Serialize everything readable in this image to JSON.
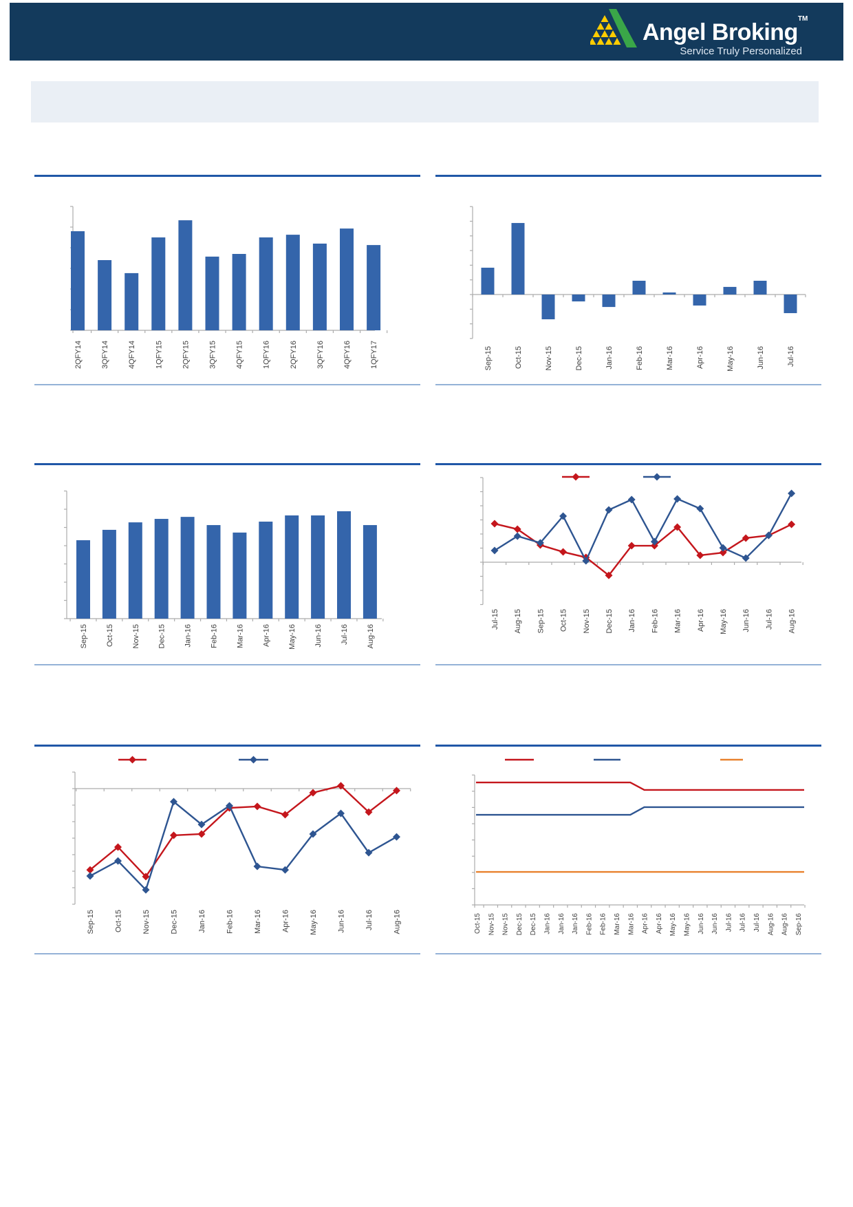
{
  "header": {
    "brand": "Angel Broking",
    "trademark": "TM",
    "tagline": "Service Truly Personalized",
    "bg_color": "#133A5C",
    "logo_green": "#3AA648",
    "logo_yellow": "#FFCC00"
  },
  "banner": {
    "bg_color": "#EAEFF5",
    "text": ""
  },
  "styles": {
    "separator_top_color": "#2057A7",
    "separator_bottom_color": "#94B2D7",
    "axis_color": "#ACACAC",
    "label_color": "#404040"
  },
  "chart_data": [
    {
      "id": "c1",
      "name": "quarterly-bar-chart",
      "type": "bar",
      "title": "",
      "categories": [
        "2QFY14",
        "3QFY14",
        "4QFY14",
        "1QFY15",
        "2QFY15",
        "3QFY15",
        "4QFY15",
        "1QFY16",
        "2QFY16",
        "3QFY16",
        "4QFY16",
        "1QFY17"
      ],
      "values": [
        4.8,
        3.4,
        2.77,
        4.5,
        5.33,
        3.57,
        3.7,
        4.5,
        4.63,
        4.2,
        4.93,
        4.13
      ],
      "color": "#3465AB",
      "xlabel": "",
      "ylabel": "",
      "ylim": [
        0,
        6
      ],
      "grid": false
    },
    {
      "id": "c2",
      "name": "monthly-change-bar-chart",
      "type": "bar",
      "title": "",
      "categories": [
        "Sep-15",
        "Oct-15",
        "Nov-15",
        "Dec-15",
        "Jan-16",
        "Feb-16",
        "Mar-16",
        "Apr-16",
        "May-16",
        "Jun-16",
        "Jul-16"
      ],
      "values": [
        1.83,
        4.88,
        -1.69,
        -0.47,
        -0.85,
        0.94,
        0.14,
        -0.75,
        0.52,
        0.94,
        -1.27
      ],
      "color": "#3465AB",
      "xlabel": "",
      "ylabel": "",
      "ylim": [
        -3,
        6
      ],
      "grid": false
    },
    {
      "id": "c3",
      "name": "monthly-level-bar-chart",
      "type": "bar",
      "title": "",
      "categories": [
        "Sep-15",
        "Oct-15",
        "Nov-15",
        "Dec-15",
        "Jan-16",
        "Feb-16",
        "Mar-16",
        "Apr-16",
        "May-16",
        "Jun-16",
        "Jul-16",
        "Aug-16"
      ],
      "values": [
        4.3,
        4.87,
        5.28,
        5.47,
        5.58,
        5.13,
        4.72,
        5.32,
        5.66,
        5.66,
        5.89,
        5.13
      ],
      "color": "#3465AB",
      "xlabel": "",
      "ylabel": "",
      "ylim": [
        0,
        7
      ],
      "grid": false
    },
    {
      "id": "c4",
      "name": "two-series-growth-line-chart",
      "type": "line",
      "title": "",
      "categories": [
        "Jul-15",
        "Aug-15",
        "Sep-15",
        "Oct-15",
        "Nov-15",
        "Dec-15",
        "Jan-16",
        "Feb-16",
        "Mar-16",
        "Apr-16",
        "May-16",
        "Jun-16",
        "Jul-16",
        "Aug-16"
      ],
      "series": [
        {
          "name": "red-series",
          "color": "#C4161C",
          "marker": "diamond",
          "values": [
            2.73,
            2.34,
            1.22,
            0.73,
            0.34,
            -0.93,
            1.17,
            1.17,
            2.49,
            0.49,
            0.68,
            1.71,
            1.9,
            2.68
          ]
        },
        {
          "name": "blue-series",
          "color": "#2E5591",
          "marker": "diamond",
          "values": [
            0.83,
            1.85,
            1.37,
            3.27,
            0.1,
            3.71,
            4.44,
            1.46,
            4.49,
            3.8,
            1.02,
            0.29,
            1.9,
            4.88
          ]
        }
      ],
      "xlabel": "",
      "ylabel": "",
      "ylim": [
        -3,
        6
      ],
      "legend_position": "top",
      "grid": false
    },
    {
      "id": "c5",
      "name": "two-series-negative-line-chart",
      "type": "line",
      "title": "",
      "categories": [
        "Sep-15",
        "Oct-15",
        "Nov-15",
        "Dec-15",
        "Jan-16",
        "Feb-16",
        "Mar-16",
        "Apr-16",
        "May-16",
        "Jun-16",
        "Jul-16",
        "Aug-16"
      ],
      "series": [
        {
          "name": "red-series",
          "color": "#C4161C",
          "marker": "diamond",
          "values": [
            -4.92,
            -3.54,
            -5.33,
            -2.83,
            -2.75,
            -1.17,
            -1.08,
            -1.58,
            -0.25,
            0.17,
            -1.42,
            -0.12
          ]
        },
        {
          "name": "blue-series",
          "color": "#2E5591",
          "marker": "diamond",
          "values": [
            -5.29,
            -4.38,
            -6.13,
            -0.79,
            -2.17,
            -1.04,
            -4.71,
            -4.92,
            -2.75,
            -1.5,
            -3.88,
            -2.92
          ]
        }
      ],
      "xlabel": "",
      "ylabel": "",
      "ylim": [
        -7,
        1
      ],
      "legend_position": "top",
      "grid": false
    },
    {
      "id": "c6",
      "name": "three-series-step-line-chart",
      "type": "line",
      "title": "",
      "categories": [
        "Oct-15",
        "Nov-15",
        "Nov-15",
        "Dec-15",
        "Dec-15",
        "Jan-16",
        "Jan-16",
        "Jan-16",
        "Feb-16",
        "Feb-16",
        "Mar-16",
        "Mar-16",
        "Apr-16",
        "Apr-16",
        "May-16",
        "May-16",
        "Jun-16",
        "Jun-16",
        "Jul-16",
        "Jul-16",
        "Jul-16",
        "Aug-16",
        "Aug-16",
        "Sep-16"
      ],
      "series": [
        {
          "name": "red-series",
          "color": "#C4161C",
          "marker": "none",
          "values": [
            7.54,
            7.54,
            7.54,
            7.54,
            7.54,
            7.54,
            7.54,
            7.54,
            7.54,
            7.54,
            7.54,
            7.54,
            7.08,
            7.08,
            7.08,
            7.08,
            7.08,
            7.08,
            7.08,
            7.08,
            7.08,
            7.08,
            7.08,
            7.08
          ]
        },
        {
          "name": "blue-series",
          "color": "#2E5591",
          "marker": "none",
          "values": [
            5.55,
            5.55,
            5.55,
            5.55,
            5.55,
            5.55,
            5.55,
            5.55,
            5.55,
            5.55,
            5.55,
            5.55,
            6.02,
            6.02,
            6.02,
            6.02,
            6.02,
            6.02,
            6.02,
            6.02,
            6.02,
            6.02,
            6.02,
            6.02
          ]
        },
        {
          "name": "orange-series",
          "color": "#E8812D",
          "marker": "none",
          "values": [
            2.03,
            2.03,
            2.03,
            2.03,
            2.03,
            2.03,
            2.03,
            2.03,
            2.03,
            2.03,
            2.03,
            2.03,
            2.03,
            2.03,
            2.03,
            2.03,
            2.03,
            2.03,
            2.03,
            2.03,
            2.03,
            2.03,
            2.03,
            2.03
          ]
        }
      ],
      "xlabel": "",
      "ylabel": "",
      "ylim": [
        0,
        8
      ],
      "legend_position": "top",
      "grid": false
    }
  ]
}
